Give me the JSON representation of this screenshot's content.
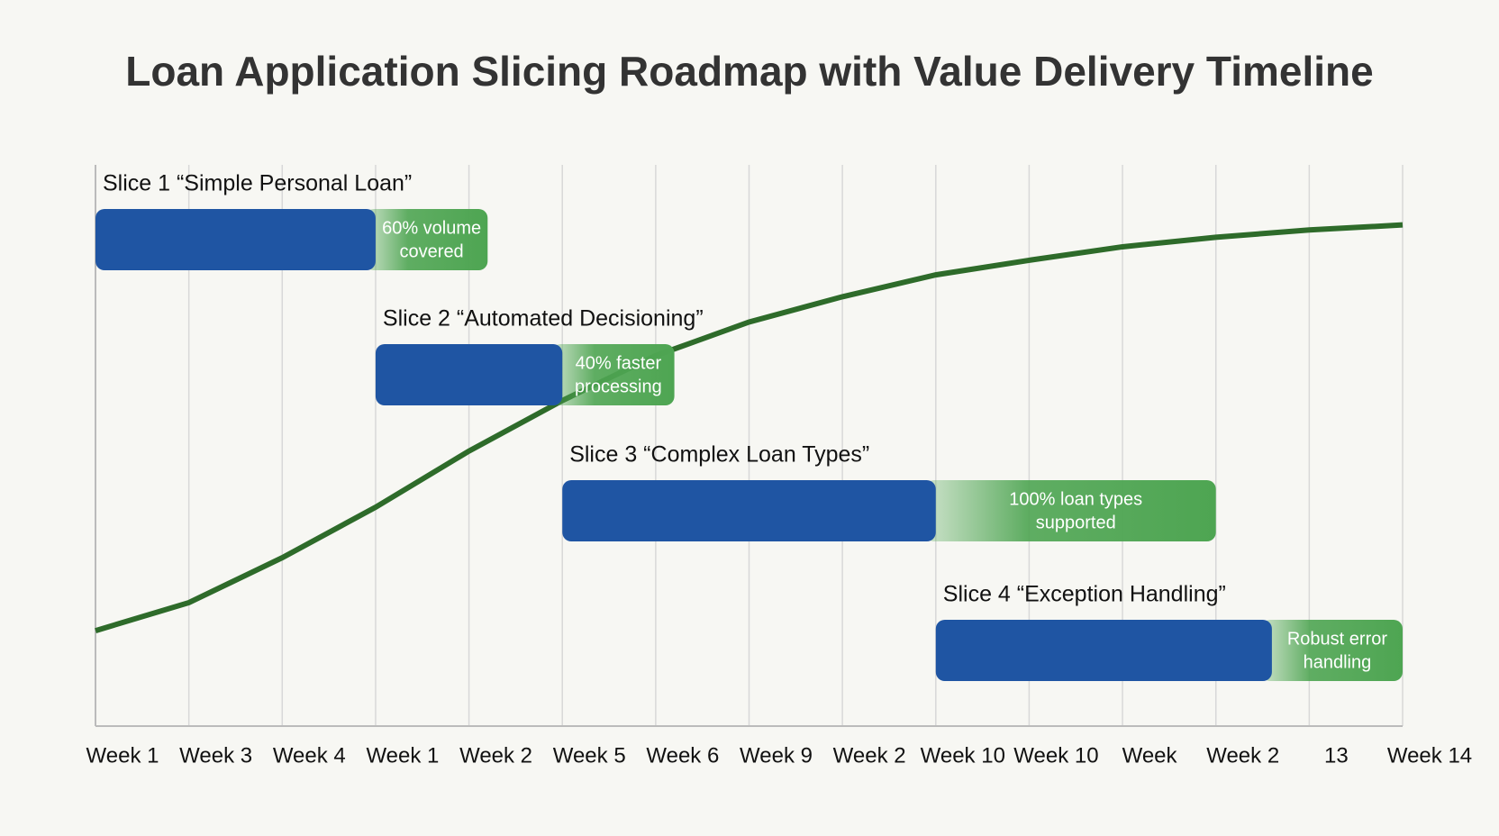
{
  "chart_data": {
    "type": "gantt",
    "title": "Loan Application Slicing Roadmap with Value Delivery Timeline",
    "xlim": [
      0,
      14
    ],
    "xticks": [
      {
        "value": 0,
        "label": "Week 1"
      },
      {
        "value": 1,
        "label": "Week 3"
      },
      {
        "value": 2,
        "label": "Week 4"
      },
      {
        "value": 3,
        "label": "Week 1"
      },
      {
        "value": 4,
        "label": "Week 2"
      },
      {
        "value": 5,
        "label": "Week 5"
      },
      {
        "value": 6,
        "label": "Week 6"
      },
      {
        "value": 7,
        "label": "Week 9"
      },
      {
        "value": 8,
        "label": "Week 2"
      },
      {
        "value": 9,
        "label": "Week 10"
      },
      {
        "value": 10,
        "label": "Week 10"
      },
      {
        "value": 11,
        "label": "Week"
      },
      {
        "value": 12,
        "label": "Week 2"
      },
      {
        "value": 13,
        "label": "13"
      },
      {
        "value": 14,
        "label": "Week 14"
      }
    ],
    "grid": true,
    "bar_color": "#1f55a3",
    "outcome_color": "#4ea552",
    "tasks": [
      {
        "name": "Slice 1 “Simple Personal Loan”",
        "start": 0,
        "end": 3,
        "outcome_end": 4.2,
        "outcome": [
          "60% volume",
          "covered"
        ]
      },
      {
        "name": "Slice 2 “Automated Decisioning”",
        "start": 3,
        "end": 5,
        "outcome_end": 6.2,
        "outcome": [
          "40% faster",
          "processing"
        ]
      },
      {
        "name": "Slice 3 “Complex Loan Types”",
        "start": 5,
        "end": 9,
        "outcome_end": 12,
        "outcome": [
          "100% loan types",
          "supported"
        ]
      },
      {
        "name": "Slice 4 “Exception Handling”",
        "start": 9,
        "end": 12.6,
        "outcome_end": 14,
        "outcome": [
          "Robust error",
          "handling"
        ]
      }
    ],
    "curve": {
      "color": "#2e6b2a",
      "ylim": [
        0,
        100
      ],
      "x": [
        0,
        1,
        2,
        3,
        4,
        5,
        6,
        7,
        8,
        9,
        10,
        11,
        12,
        13,
        14
      ],
      "y": [
        17,
        22,
        30,
        39,
        49,
        58,
        66,
        72,
        76.5,
        80.4,
        83,
        85.4,
        87.1,
        88.4,
        89.3
      ]
    }
  }
}
